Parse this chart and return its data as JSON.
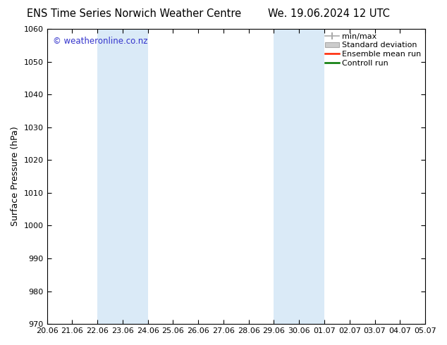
{
  "title_left": "ENS Time Series Norwich Weather Centre",
  "title_right": "We. 19.06.2024 12 UTC",
  "ylabel": "Surface Pressure (hPa)",
  "ylim": [
    970,
    1060
  ],
  "yticks": [
    970,
    980,
    990,
    1000,
    1010,
    1020,
    1030,
    1040,
    1050,
    1060
  ],
  "xtick_labels": [
    "20.06",
    "21.06",
    "22.06",
    "23.06",
    "24.06",
    "25.06",
    "26.06",
    "27.06",
    "28.06",
    "29.06",
    "30.06",
    "01.07",
    "02.07",
    "03.07",
    "04.07",
    "05.07"
  ],
  "shaded_bands": [
    {
      "x_start": "22.06",
      "x_end": "24.06"
    },
    {
      "x_start": "29.06",
      "x_end": "01.07"
    }
  ],
  "shaded_color": "#daeaf7",
  "watermark": "© weatheronline.co.nz",
  "watermark_color": "#3333cc",
  "legend_items": [
    {
      "label": "min/max",
      "color": "#aaaaaa"
    },
    {
      "label": "Standard deviation",
      "color": "#cccccc"
    },
    {
      "label": "Ensemble mean run",
      "color": "#ff2200"
    },
    {
      "label": "Controll run",
      "color": "#007700"
    }
  ],
  "background_color": "#ffffff",
  "border_color": "#000000",
  "title_fontsize": 10.5,
  "axis_label_fontsize": 9,
  "tick_fontsize": 8,
  "legend_fontsize": 8
}
